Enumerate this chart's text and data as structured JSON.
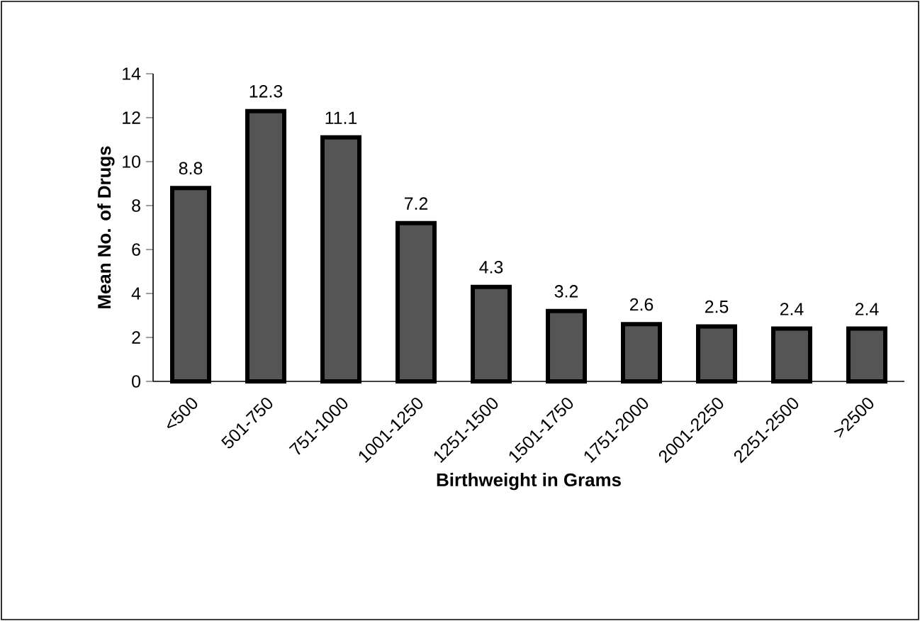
{
  "chart_data": {
    "type": "bar",
    "xlabel": "Birthweight in Grams",
    "ylabel": "Mean No. of Drugs",
    "categories": [
      "<500",
      "501-750",
      "751-1000",
      "1001-1250",
      "1251-1500",
      "1501-1750",
      "1751-2000",
      "2001-2250",
      "2251-2500",
      ">2500"
    ],
    "values": [
      8.8,
      12.3,
      11.1,
      7.2,
      4.3,
      3.2,
      2.6,
      2.5,
      2.4,
      2.4
    ],
    "value_labels": [
      "8.8",
      "12.3",
      "11.1",
      "7.2",
      "4.3",
      "3.2",
      "2.6",
      "2.5",
      "2.4",
      "2.4"
    ],
    "color": "#555555",
    "ylim": [
      0,
      14
    ],
    "yticks": [
      0,
      2,
      4,
      6,
      8,
      10,
      12,
      14
    ]
  }
}
